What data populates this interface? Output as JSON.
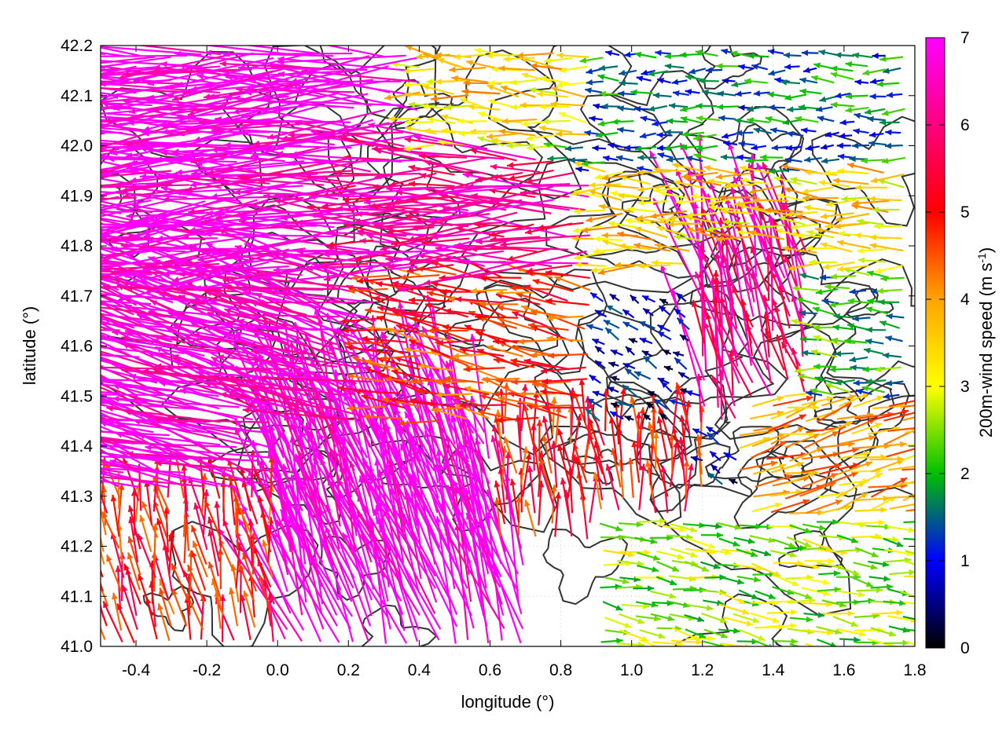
{
  "chart_data": {
    "type": "quiver",
    "xlabel": "longitude (°)",
    "ylabel": "latitude (°)",
    "xlim": [
      -0.5,
      1.8
    ],
    "ylim": [
      41.0,
      42.2
    ],
    "xticks": [
      "-0.4",
      "-0.2",
      "0.0",
      "0.2",
      "0.4",
      "0.6",
      "0.8",
      "1.0",
      "1.2",
      "1.4",
      "1.6",
      "1.8"
    ],
    "yticks": [
      "41.0",
      "41.1",
      "41.2",
      "41.3",
      "41.4",
      "41.5",
      "41.6",
      "41.7",
      "41.8",
      "41.9",
      "42.0",
      "42.1",
      "42.2"
    ],
    "grid": true,
    "colorbar": {
      "label_prefix": "200m-wind speed (m s",
      "label_exponent": "-1",
      "label_suffix": ")",
      "range": [
        0,
        7
      ],
      "ticks": [
        "0",
        "1",
        "2",
        "3",
        "4",
        "5",
        "6",
        "7"
      ],
      "colors": [
        "#000000",
        "#0000ff",
        "#00c000",
        "#ffff00",
        "#ffa500",
        "#ff0000",
        "#ff00ff"
      ]
    },
    "wind_regimes": [
      {
        "lon": [
          -0.5,
          0.4
        ],
        "lat": [
          41.75,
          42.2
        ],
        "speed": 7.0,
        "dir_deg": 182
      },
      {
        "lon": [
          0.2,
          0.9
        ],
        "lat": [
          41.75,
          42.0
        ],
        "speed": 6.2,
        "dir_deg": 180
      },
      {
        "lon": [
          0.9,
          1.8
        ],
        "lat": [
          41.75,
          41.95
        ],
        "speed": 3.5,
        "dir_deg": 178
      },
      {
        "lon": [
          -0.5,
          0.3
        ],
        "lat": [
          41.3,
          41.75
        ],
        "speed": 6.8,
        "dir_deg": 165
      },
      {
        "lon": [
          0.3,
          0.9
        ],
        "lat": [
          41.45,
          41.75
        ],
        "speed": 4.8,
        "dir_deg": 170
      },
      {
        "lon": [
          0.0,
          0.7
        ],
        "lat": [
          41.0,
          41.45
        ],
        "speed": 7.0,
        "dir_deg": 110
      },
      {
        "lon": [
          -0.5,
          0.0
        ],
        "lat": [
          41.0,
          41.3
        ],
        "speed": 5.0,
        "dir_deg": 100
      },
      {
        "lon": [
          0.9,
          1.3
        ],
        "lat": [
          41.3,
          41.7
        ],
        "speed": 0.8,
        "dir_deg": 150
      },
      {
        "lon": [
          1.2,
          1.5
        ],
        "lat": [
          41.45,
          41.8
        ],
        "speed": 6.0,
        "dir_deg": 105
      },
      {
        "lon": [
          1.5,
          1.8
        ],
        "lat": [
          41.45,
          41.75
        ],
        "speed": 2.0,
        "dir_deg": 175
      },
      {
        "lon": [
          0.6,
          1.2
        ],
        "lat": [
          41.2,
          41.45
        ],
        "speed": 5.0,
        "dir_deg": 95
      },
      {
        "lon": [
          1.3,
          1.8
        ],
        "lat": [
          41.25,
          41.5
        ],
        "speed": 4.0,
        "dir_deg": 15
      },
      {
        "lon": [
          0.9,
          1.8
        ],
        "lat": [
          41.0,
          41.25
        ],
        "speed": 2.6,
        "dir_deg": -10
      },
      {
        "lon": [
          0.8,
          1.8
        ],
        "lat": [
          41.95,
          42.2
        ],
        "speed": 1.5,
        "dir_deg": 180
      },
      {
        "lon": [
          0.4,
          0.9
        ],
        "lat": [
          42.0,
          42.2
        ],
        "speed": 3.5,
        "dir_deg": 175
      }
    ]
  }
}
